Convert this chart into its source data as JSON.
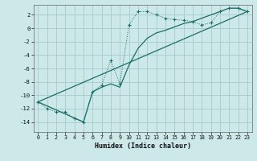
{
  "xlabel": "Humidex (Indice chaleur)",
  "background_color": "#cce8e8",
  "grid_color": "#aacece",
  "line_color": "#1a6e68",
  "xlim": [
    -0.5,
    23.5
  ],
  "ylim": [
    -15.5,
    3.5
  ],
  "yticks": [
    2,
    0,
    -2,
    -4,
    -6,
    -8,
    -10,
    -12,
    -14
  ],
  "xticks": [
    0,
    1,
    2,
    3,
    4,
    5,
    6,
    7,
    8,
    9,
    10,
    11,
    12,
    13,
    14,
    15,
    16,
    17,
    18,
    19,
    20,
    21,
    22,
    23
  ],
  "series1_x": [
    0,
    1,
    2,
    3,
    4,
    5,
    6,
    7,
    8,
    9,
    10,
    11,
    12,
    13,
    14,
    15,
    16,
    17,
    18,
    19,
    20,
    21,
    22,
    23
  ],
  "series1_y": [
    -11,
    -12,
    -12.5,
    -12.5,
    -13.5,
    -14,
    -9.5,
    -8.5,
    -4.8,
    -8.3,
    0.5,
    2.5,
    2.5,
    2.0,
    1.5,
    1.3,
    1.2,
    1.0,
    0.5,
    0.8,
    2.5,
    3.0,
    3.0,
    2.5
  ],
  "series2_x": [
    0,
    5,
    6,
    7,
    8,
    9,
    10,
    11,
    12,
    13,
    14,
    15,
    16,
    17,
    18,
    19,
    20,
    21,
    22,
    23
  ],
  "series2_y": [
    -11,
    -14,
    -9.5,
    -8.8,
    -8.3,
    -8.8,
    -5.5,
    -3.0,
    -1.5,
    -0.7,
    -0.3,
    0.2,
    0.7,
    1.0,
    1.5,
    2.0,
    2.5,
    3.0,
    3.0,
    2.5
  ],
  "series3_x": [
    0,
    23
  ],
  "series3_y": [
    -11,
    2.5
  ]
}
